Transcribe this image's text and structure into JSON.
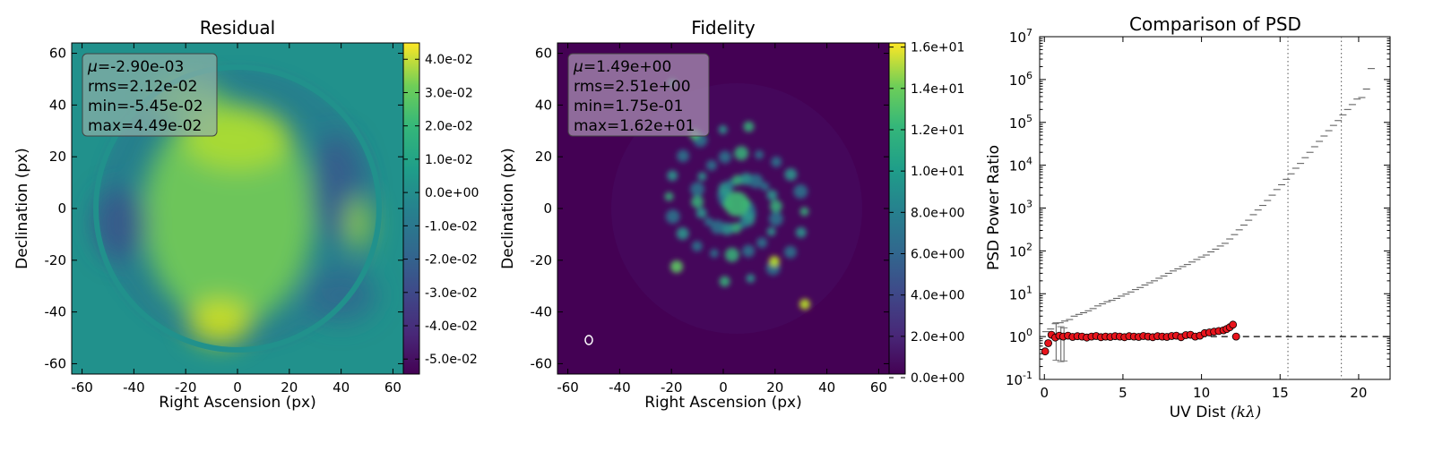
{
  "chart_data": [
    {
      "type": "heatmap",
      "title": "Residual",
      "xlabel": "Right Ascension (px)",
      "ylabel": "Declination (px)",
      "xlim": [
        -64,
        64
      ],
      "ylim": [
        -64,
        64
      ],
      "xticks": [
        "-60",
        "-40",
        "-20",
        "0",
        "20",
        "40",
        "60"
      ],
      "yticks": [
        "60",
        "40",
        "20",
        "0",
        "-20",
        "-40",
        "-60"
      ],
      "colormap": "viridis",
      "colorbar_range": [
        -0.0545,
        0.0449
      ],
      "colorbar_ticks": [
        "4.0e-02",
        "3.0e-02",
        "2.0e-02",
        "1.0e-02",
        "0.0e+00",
        "-1.0e-02",
        "-2.0e-02",
        "-3.0e-02",
        "-4.0e-02",
        "-5.0e-02"
      ],
      "stats": {
        "mu_symbol": "μ",
        "mu": "=-2.90e-03",
        "rms": "rms=2.12e-02",
        "min": "min=-5.45e-02",
        "max": "max=4.49e-02"
      }
    },
    {
      "type": "heatmap",
      "title": "Fidelity",
      "xlabel": "Right Ascension (px)",
      "ylabel": "Declination (px)",
      "xlim": [
        -64,
        64
      ],
      "ylim": [
        -64,
        64
      ],
      "xticks": [
        "-60",
        "-40",
        "-20",
        "0",
        "20",
        "40",
        "60"
      ],
      "yticks": [
        "60",
        "40",
        "20",
        "0",
        "-20",
        "-40",
        "-60"
      ],
      "colormap": "viridis",
      "colorbar_range": [
        0.175,
        16.2
      ],
      "colorbar_ticks": [
        "1.6e+01",
        "1.4e+01",
        "1.2e+01",
        "1.0e+01",
        "8.0e+00",
        "6.0e+00",
        "4.0e+00",
        "2.0e+00",
        "0.0e+00"
      ],
      "stats": {
        "mu_symbol": "μ",
        "mu": "=1.49e+00",
        "rms": "rms=2.51e+00",
        "min": "min=1.75e-01",
        "max": "max=1.62e+01"
      }
    },
    {
      "type": "scatter",
      "title": "Comparison of PSD",
      "xlabel": "UV Dist ",
      "xlabel_math": "(kλ)",
      "ylabel": "PSD Power Ratio",
      "xlim": [
        -0.3,
        22
      ],
      "ylim_log10": [
        -1,
        7
      ],
      "xticks": [
        "0",
        "5",
        "10",
        "15",
        "20"
      ],
      "ytick_base": "10",
      "ytick_exponents": [
        "7",
        "6",
        "5",
        "4",
        "3",
        "2",
        "1",
        "0",
        "-1"
      ],
      "vlines": [
        15.5,
        18.9
      ],
      "hline": 1.0,
      "points": {
        "x": [
          0.05,
          0.25,
          0.45,
          0.7,
          0.95,
          1.2,
          1.5,
          1.8,
          2.1,
          2.4,
          2.7,
          3.0,
          3.3,
          3.6,
          3.9,
          4.2,
          4.5,
          4.8,
          5.1,
          5.4,
          5.7,
          6.0,
          6.3,
          6.6,
          6.9,
          7.2,
          7.5,
          7.8,
          8.1,
          8.4,
          8.7,
          9.0,
          9.3,
          9.6,
          9.9,
          10.2,
          10.5,
          10.8,
          11.1,
          11.4,
          11.6,
          11.8,
          12.0,
          12.2
        ],
        "y": [
          0.45,
          0.7,
          1.1,
          0.95,
          1.05,
          1.0,
          1.05,
          0.98,
          1.02,
          1.0,
          0.95,
          1.0,
          1.03,
          0.97,
          1.0,
          0.98,
          1.02,
          1.0,
          0.97,
          1.02,
          1.0,
          0.98,
          1.03,
          1.0,
          0.97,
          1.02,
          1.0,
          0.98,
          1.03,
          1.05,
          0.97,
          1.08,
          1.1,
          1.0,
          1.05,
          1.2,
          1.25,
          1.3,
          1.35,
          1.4,
          1.5,
          1.65,
          1.9,
          1.0
        ]
      },
      "dash_segments": {
        "x": [
          0.1,
          0.4,
          0.7,
          1.0,
          1.3,
          1.6,
          1.9,
          2.2,
          2.5,
          2.8,
          3.1,
          3.4,
          3.7,
          4.0,
          4.3,
          4.6,
          4.9,
          5.2,
          5.5,
          5.8,
          6.1,
          6.4,
          6.7,
          7.0,
          7.3,
          7.6,
          7.9,
          8.2,
          8.5,
          8.8,
          9.1,
          9.4,
          9.7,
          10.0,
          10.3,
          10.6,
          10.9,
          11.2,
          11.5,
          11.8,
          12.1,
          12.4,
          12.7,
          13.0,
          13.3,
          13.6,
          13.9,
          14.2,
          14.5,
          14.8,
          15.1,
          15.4,
          15.7,
          16.0,
          16.3,
          16.6,
          16.9,
          17.2,
          17.5,
          17.8,
          18.1,
          18.4,
          18.7,
          19.0,
          19.3,
          19.6,
          19.9,
          20.2,
          20.5,
          20.8
        ],
        "y": [
          1.3,
          1.5,
          2.0,
          2.1,
          2.3,
          2.5,
          3.0,
          3.3,
          3.6,
          4.0,
          4.5,
          5.2,
          5.8,
          6.5,
          7.0,
          7.8,
          8.8,
          9.8,
          11,
          12.5,
          14,
          16,
          18,
          20,
          23,
          26,
          30,
          34,
          38,
          43,
          48,
          55,
          63,
          72,
          80,
          95,
          110,
          130,
          150,
          190,
          240,
          310,
          400,
          520,
          700,
          900,
          1150,
          1500,
          2000,
          2700,
          3500,
          4700,
          6300,
          8500,
          11000,
          15000,
          20000,
          27000,
          36000,
          48000,
          64000,
          85000,
          110000,
          150000,
          200000,
          260000,
          350000,
          380000,
          600000,
          1800000
        ]
      },
      "errorbars": [
        {
          "x": 0.75,
          "low": 0.28,
          "high": 2.1
        },
        {
          "x": 1.05,
          "low": 0.26,
          "high": 1.7
        },
        {
          "x": 1.25,
          "low": 0.27,
          "high": 1.6
        }
      ]
    }
  ]
}
